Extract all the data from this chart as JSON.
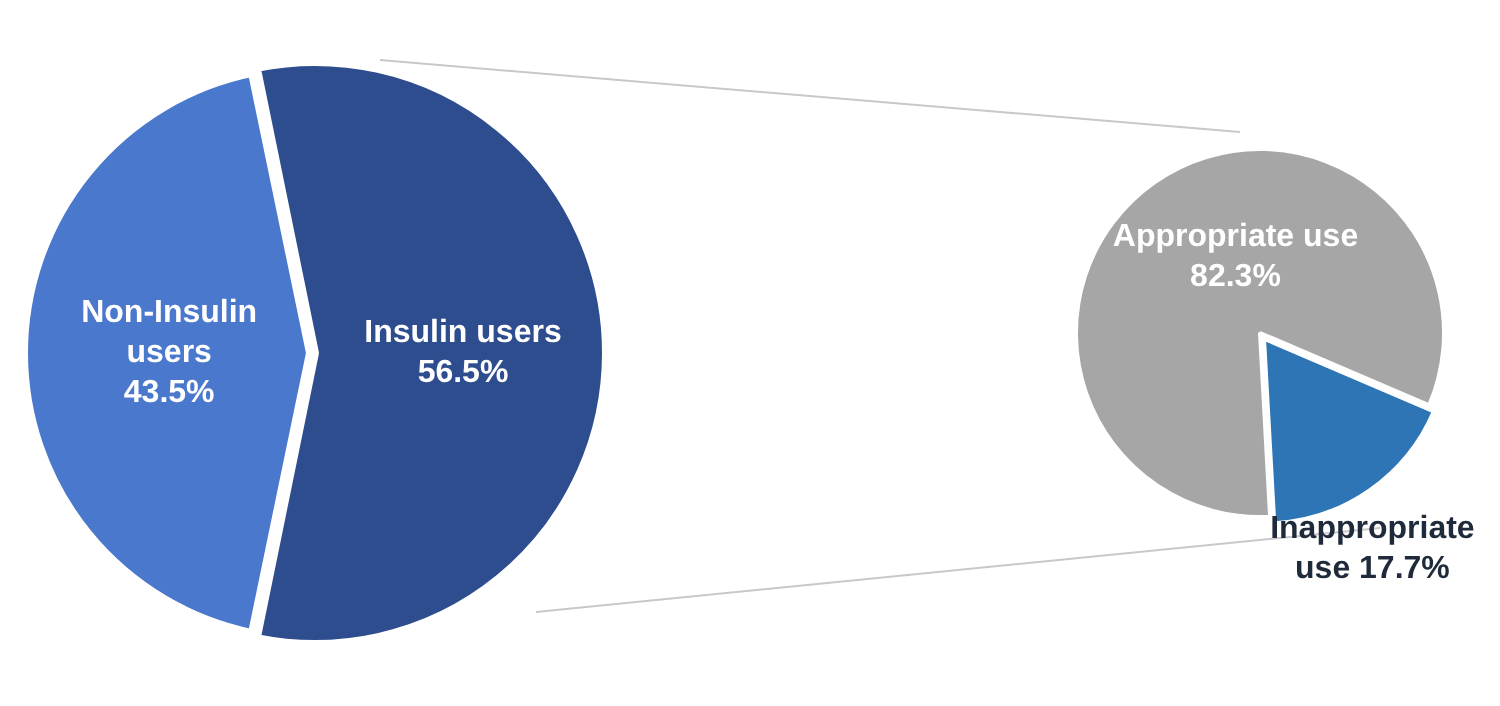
{
  "chart_data": [
    {
      "type": "pie",
      "categories": [
        "Non-Insulin users",
        "Insulin users"
      ],
      "values": [
        43.5,
        56.5
      ],
      "colors": [
        "#4a78cc",
        "#2e4d8e"
      ],
      "value_labels": [
        "43.5%",
        "56.5%"
      ],
      "legend": false
    },
    {
      "type": "pie",
      "categories": [
        "Appropriate use",
        "Inappropriate use"
      ],
      "values": [
        82.3,
        17.7
      ],
      "colors": [
        "#a6a6a6",
        "#2e75b6"
      ],
      "value_labels": [
        "82.3%",
        "17.7%"
      ],
      "legend": false
    }
  ]
}
